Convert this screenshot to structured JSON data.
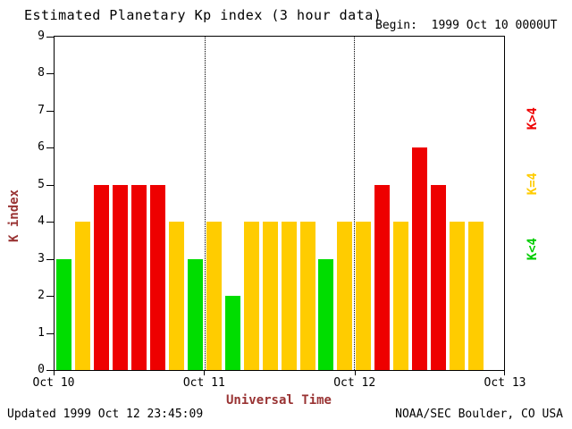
{
  "title": "Estimated Planetary Kp index (3 hour data)",
  "begin_label": "Begin:  1999 Oct 10 0000UT",
  "updated": "Updated 1999 Oct 12 23:45:09",
  "credit": "NOAA/SEC Boulder, CO USA",
  "ylabel": "K index",
  "xlabel": "Universal Time",
  "legend": [
    {
      "label": "K>4",
      "color": "#ee0000"
    },
    {
      "label": "K=4",
      "color": "#ffcc00"
    },
    {
      "label": "K<4",
      "color": "#00cc00"
    }
  ],
  "colors": {
    "axis_label": "#993333",
    "axis": "#000000",
    "background": "#ffffff"
  },
  "chart_data": {
    "type": "bar",
    "title": "Estimated Planetary Kp index (3 hour data)",
    "xlabel": "Universal Time",
    "ylabel": "K index",
    "ylim": [
      0,
      9
    ],
    "yticks": [
      0,
      1,
      2,
      3,
      4,
      5,
      6,
      7,
      8,
      9
    ],
    "day_ticks": [
      "Oct 10",
      "Oct 11",
      "Oct 12",
      "Oct 13"
    ],
    "interval_hours": 3,
    "days": [
      {
        "date": "1999 Oct 10",
        "values": [
          3,
          4,
          5,
          5,
          5,
          5,
          4,
          3
        ]
      },
      {
        "date": "1999 Oct 11",
        "values": [
          4,
          2,
          4,
          4,
          4,
          4,
          3,
          4
        ]
      },
      {
        "date": "1999 Oct 12",
        "values": [
          4,
          5,
          4,
          6,
          5,
          4,
          4
        ]
      }
    ],
    "color_rule": {
      "below_4": "#00dd00",
      "equal_4": "#ffcc00",
      "above_4": "#ee0000"
    },
    "legend_position": "right",
    "grid": "dotted vertical lines at day boundaries"
  }
}
